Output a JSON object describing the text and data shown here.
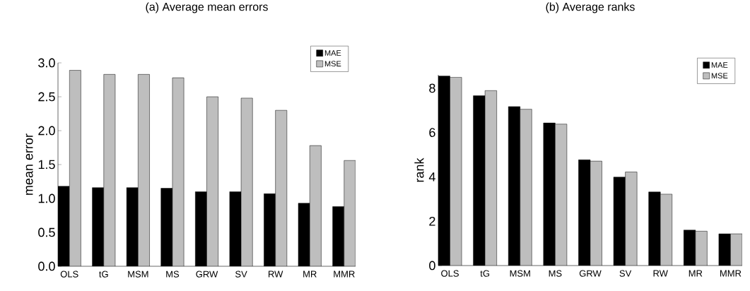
{
  "chart_data": [
    {
      "type": "bar",
      "title": "(a) Average mean errors",
      "ylabel": "mean error",
      "categories": [
        "OLS",
        "tG",
        "MSM",
        "MS",
        "GRW",
        "SV",
        "RW",
        "MR",
        "MMR"
      ],
      "series": [
        {
          "name": "MAE",
          "color": "#000000",
          "values": [
            1.18,
            1.16,
            1.16,
            1.15,
            1.1,
            1.1,
            1.07,
            0.93,
            0.88
          ]
        },
        {
          "name": "MSE",
          "color": "#bebebe",
          "values": [
            2.89,
            2.83,
            2.83,
            2.78,
            2.5,
            2.48,
            2.3,
            1.78,
            1.56
          ]
        }
      ],
      "ylim": [
        0,
        3
      ],
      "yticks": [
        {
          "value": 0,
          "label": "0.0"
        },
        {
          "value": 0.5,
          "label": "0.5"
        },
        {
          "value": 1,
          "label": "1.0"
        },
        {
          "value": 1.5,
          "label": "1.5"
        },
        {
          "value": 2,
          "label": "2.0"
        },
        {
          "value": 2.5,
          "label": "2.5"
        },
        {
          "value": 3,
          "label": "3.0"
        }
      ],
      "legend": "top right"
    },
    {
      "type": "bar",
      "title": "(b) Average ranks",
      "ylabel": "rank",
      "categories": [
        "OLS",
        "tG",
        "MSM",
        "MS",
        "GRW",
        "SV",
        "RW",
        "MR",
        "MMR"
      ],
      "series": [
        {
          "name": "MAE",
          "color": "#000000",
          "values": [
            8.55,
            7.66,
            7.17,
            6.43,
            4.77,
            3.99,
            3.32,
            1.6,
            1.43
          ]
        },
        {
          "name": "MSE",
          "color": "#bebebe",
          "values": [
            8.49,
            7.89,
            7.05,
            6.38,
            4.71,
            4.22,
            3.22,
            1.55,
            1.43
          ]
        }
      ],
      "ylim": [
        0,
        8.6
      ],
      "yticks": [
        0,
        2,
        4,
        6,
        8
      ],
      "legend": "top right"
    }
  ]
}
